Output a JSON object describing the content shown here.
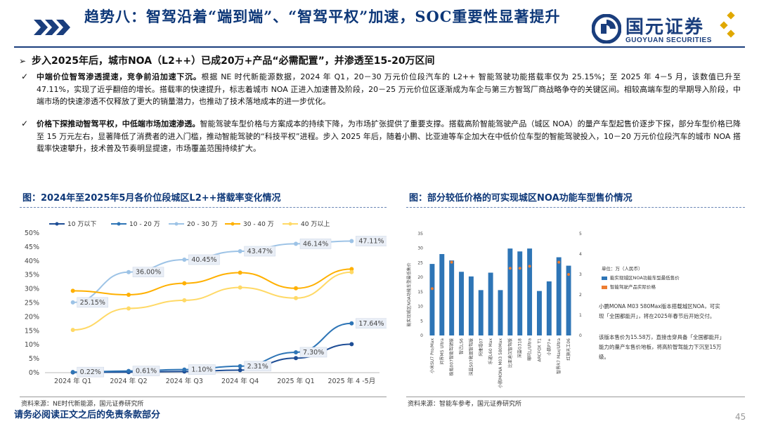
{
  "header": {
    "title": "趋势八：智驾沿着“端到端”、“智驾平权”加速，SOC重要性显著提升",
    "logo_cn": "国元证券",
    "logo_en": "GUOYUAN SECURITIES"
  },
  "subhead": "步入2025年后，城市NOA（L2++）已成20万+产品“必需配置”，并渗透至15-20万区间",
  "bullets": [
    {
      "bold": "中端价位智驾渗透提速，竞争前沿加速下沉。",
      "text": "根据 NE 时代新能源数据，2024 年 Q1，20－30 万元价位段汽车的 L2++ 智能驾驶功能搭载率仅为 25.15%；至 2025 年 4－5 月，该数值已升至 47.11%，实现了近乎翻倍的增长。搭载率的快速提升，标志着城市 NOA 正进入加速普及阶段，20－25 万元价位区逐渐成为车企与第三方智驾厂商战略争夺的关键区间。相较高端车型的早期导入阶段，中端市场的快速渗透不仅释放了更大的销量潜力，也推动了技术落地成本的进一步优化。"
    },
    {
      "bold": "价格下探推动智驾平权，中低端市场加速渗透。",
      "text": "智能驾驶车型价格与方案成本的持续下降，为市场扩张提供了重要支撑。搭载高阶智能驾驶产品（城区 NOA）的量产车型起售价逐步下探，部分车型价格已降至 15 万元左右，显著降低了消费者的进入门槛，推动智能驾驶的“科技平权”进程。步入 2025 年后，随着小鹏、比亚迪等车企加大在中低价位车型的智能驾驶投入，10－20 万元价位段汽车的城市 NOA 搭载率快速攀升，技术普及节奏明显提速，市场覆盖范围持续扩大。"
    }
  ],
  "figure_left": {
    "title": "图：2024年至2025年5月各价位段城区L2++搭载率变化情况",
    "source": "资料来源：NE时代新能源，国元证券研究所"
  },
  "figure_right": {
    "title": "图：部分较低价格的可实现城区NOA功能车型售价情况",
    "source": "资料来源：智能车参考，国元证券研究所",
    "unit_note": "单位：万（人民币）",
    "legend": [
      "能实现城区NOA功能车型最低售价",
      "智能驾驶产品实际价格"
    ],
    "note1": "小鹏MONA M03 580Max版本搭载城区NOA，可实现「全国都能开」，将在2025年春节后开始交付。",
    "note2": "该版本售价为15.58万，直接击穿具备「全国都能开」能力的量产车售价地板，将高阶智驾能力下沉至15万级。",
    "y_axis_label": "能实现城区NOA功能车型最低售价"
  },
  "chart_data": [
    {
      "type": "line",
      "title": "2024年至2025年5月各价位段城区L2++搭载率变化情况",
      "categories": [
        "2024 年 Q1",
        "2024 年 Q2",
        "2024 年 Q3",
        "2024 年 Q4",
        "2025 年 Q1",
        "2025 年 4 -5月"
      ],
      "ylim": [
        0,
        50
      ],
      "yticks": [
        "0%",
        "5%",
        "10%",
        "15%",
        "20%",
        "25%",
        "30%",
        "35%",
        "40%",
        "45%",
        "50%"
      ],
      "series": [
        {
          "name": "10 万以下",
          "color": "#1f4e96",
          "values": [
            0.1,
            0.2,
            0.4,
            0.9,
            5.2,
            10.2
          ]
        },
        {
          "name": "10 - 20 万",
          "color": "#2e75b6",
          "values": [
            0.22,
            0.61,
            1.1,
            2.31,
            7.3,
            17.64
          ]
        },
        {
          "name": "20 - 30 万",
          "color": "#9dc3e6",
          "values": [
            25.15,
            36.0,
            40.45,
            43.47,
            46.14,
            47.11
          ]
        },
        {
          "name": "30 - 40 万",
          "color": "#ffb000",
          "values": [
            29.3,
            27.9,
            32.0,
            35.8,
            30.2,
            37.1
          ]
        },
        {
          "name": "40 万以上",
          "color": "#ffd966",
          "values": [
            15.3,
            23.0,
            25.9,
            30.5,
            26.7,
            36.0
          ]
        }
      ],
      "data_labels": [
        {
          "series": "20 - 30 万",
          "labels": [
            "25.15%",
            "36.00%",
            "40.45%",
            "43.47%",
            "46.14%",
            "47.11%"
          ]
        },
        {
          "series": "10 - 20 万",
          "labels": [
            "0.22%",
            "0.61%",
            "1.10%",
            "2.31%",
            "7.30%",
            "17.64%"
          ]
        }
      ]
    },
    {
      "type": "bar",
      "title": "部分较低价格的可实现城区NOA功能车型售价情况",
      "categories": [
        "小米SU7 Pro/Max",
        "问界M5 Ultra",
        "极氪007智能驾驶版",
        "智己LS6",
        "深蓝S07乾崑智驾版",
        "阿维塔07",
        "乐道L60 Max",
        "小鹏MONA M03 580Max",
        "比亚迪汉智驾版",
        "深蓝G318",
        "哪吒L/Ultra",
        "ARCFOX T1",
        "小鹏P7+",
        "智界R7 Max/Ultra",
        "红旗天工06"
      ],
      "values": [
        24.6,
        28.0,
        25.8,
        21.9,
        20.3,
        15.6,
        21.6,
        15.6,
        29.9,
        28.9,
        29.9,
        15.3,
        18.6,
        26.9,
        24.0
      ],
      "secondary_values": [
        2.3,
        null,
        3.6,
        null,
        null,
        null,
        null,
        null,
        3.3,
        3.3,
        3.4,
        null,
        null,
        3.6,
        3.0
      ],
      "ylim": [
        0,
        35
      ],
      "y2lim": [
        0,
        5
      ],
      "yticks": [
        "0",
        "5",
        "10",
        "15",
        "20",
        "25",
        "30",
        "35"
      ],
      "y2ticks": [
        "0",
        "1",
        "2",
        "3",
        "4",
        "5"
      ],
      "bar_color": "#2e75b6",
      "marker_color": "#ed7d31"
    }
  ]
}
